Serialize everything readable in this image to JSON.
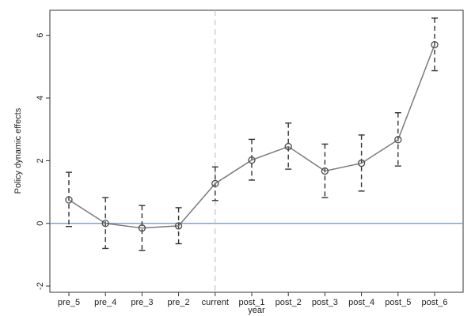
{
  "chart_data": {
    "type": "line",
    "xlabel": "year",
    "ylabel": "Policy dynamic effects",
    "categories": [
      "pre_5",
      "pre_4",
      "pre_3",
      "pre_2",
      "current",
      "post_1",
      "post_2",
      "post_3",
      "post_4",
      "post_5",
      "post_6"
    ],
    "series": [
      {
        "values": [
          0.75,
          0.0,
          -0.15,
          -0.08,
          1.27,
          2.02,
          2.45,
          1.67,
          1.92,
          2.67,
          5.7
        ],
        "ci_lower": [
          -0.1,
          -0.8,
          -0.87,
          -0.65,
          0.73,
          1.38,
          1.73,
          0.82,
          1.03,
          1.83,
          4.87
        ],
        "ci_upper": [
          1.63,
          0.82,
          0.57,
          0.5,
          1.8,
          2.68,
          3.2,
          2.53,
          2.82,
          3.53,
          6.55
        ]
      }
    ],
    "ylim": [
      -2.2,
      6.8
    ],
    "yticks": [
      "-2",
      "0",
      "2",
      "4",
      "6"
    ],
    "reference_line_y": 0,
    "vertical_marker_category": "current",
    "grid": false,
    "colors": {
      "line": "#7a7a7a",
      "marker": "#4a4a4a",
      "ci": "#333333",
      "zero_line": "#6b93bf",
      "vertical_marker": "#bbbbbb"
    }
  }
}
